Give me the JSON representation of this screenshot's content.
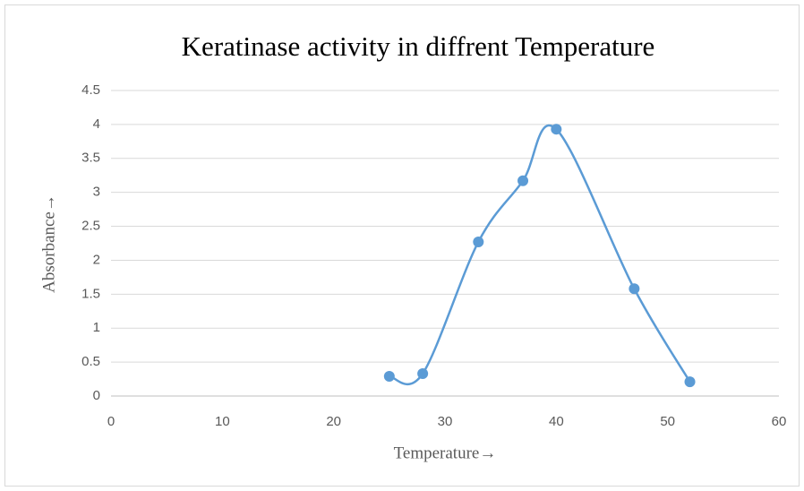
{
  "chart_data": {
    "type": "scatter",
    "smooth": true,
    "title": "Keratinase activity in diffrent Temperature",
    "x_label": "Temperature→",
    "y_label": "Absorbance→",
    "series": [
      {
        "name": "Absorbance",
        "color": "#5b9bd5",
        "x": [
          25,
          28,
          33,
          37,
          40,
          47,
          52
        ],
        "values": [
          0.29,
          0.33,
          2.27,
          3.17,
          3.93,
          1.58,
          0.21
        ]
      }
    ],
    "xlim": [
      0,
      60
    ],
    "xticks": [
      0,
      10,
      20,
      30,
      40,
      50,
      60
    ],
    "ylim": [
      0,
      4.5
    ],
    "yticks": [
      0,
      0.5,
      1,
      1.5,
      2,
      2.5,
      3,
      3.5,
      4,
      4.5
    ],
    "grid": true
  }
}
